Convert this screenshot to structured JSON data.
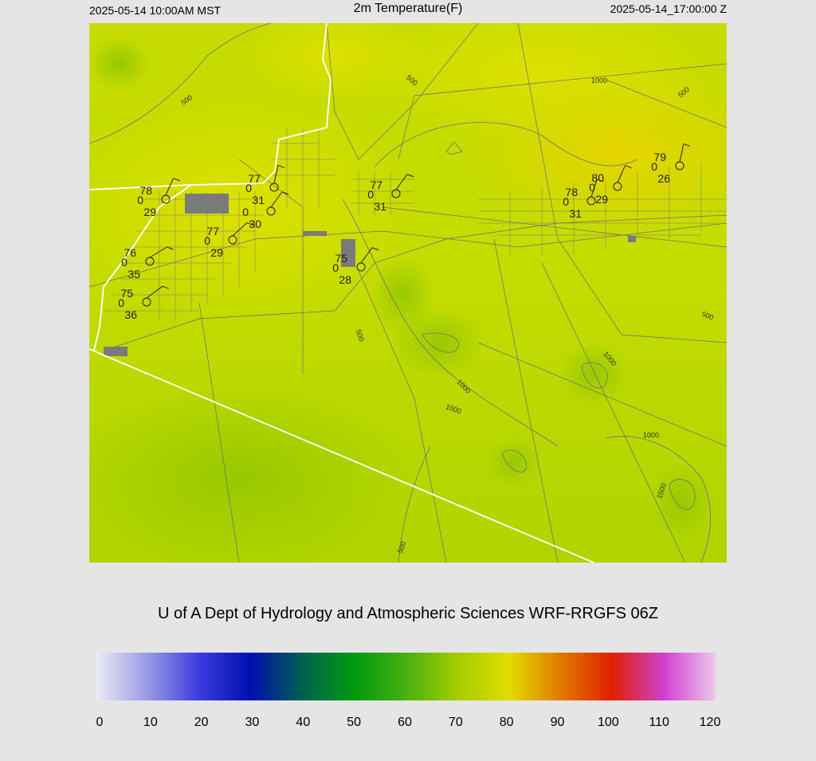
{
  "header": {
    "left": "2025-05-14 10:00AM MST",
    "title": "2m Temperature(F)",
    "right": "2025-05-14_17:00:00 Z"
  },
  "stations": [
    {
      "temp": "78",
      "mid": "0",
      "dew": "29"
    },
    {
      "temp": "77",
      "mid": "0",
      "dew": "31"
    },
    {
      "mid": "0",
      "dew": "30"
    },
    {
      "temp": "77",
      "mid": "0",
      "dew": "29"
    },
    {
      "temp": "76",
      "mid": "0",
      "dew": "35"
    },
    {
      "temp": "75",
      "mid": "0",
      "dew": "36"
    },
    {
      "temp": "75",
      "mid": "0",
      "dew": "28"
    },
    {
      "temp": "77",
      "mid": "0",
      "dew": "31"
    },
    {
      "temp": "78",
      "mid": "0",
      "dew": "31"
    },
    {
      "temp": "80",
      "mid": "0",
      "dew": "29"
    },
    {
      "temp": "79",
      "mid": "0",
      "dew": "26"
    }
  ],
  "contour_labels": [
    "500",
    "500",
    "500",
    "500",
    "500",
    "500",
    "1000",
    "1000",
    "1000",
    "1000",
    "1000",
    "1500"
  ],
  "credit": "U of A Dept of Hydrology and Atmospheric Sciences WRF-RRGFS 06Z",
  "colorbar": {
    "ticks": [
      0,
      10,
      20,
      30,
      40,
      50,
      60,
      70,
      80,
      90,
      100,
      110,
      120
    ],
    "colors": [
      "#ececf4",
      "#9a9ae6",
      "#3c3ce0",
      "#0010b0",
      "#006050",
      "#009a10",
      "#48b010",
      "#a4cc00",
      "#e2dc00",
      "#e07a00",
      "#e02000",
      "#d040d0",
      "#ecc8ec"
    ]
  }
}
